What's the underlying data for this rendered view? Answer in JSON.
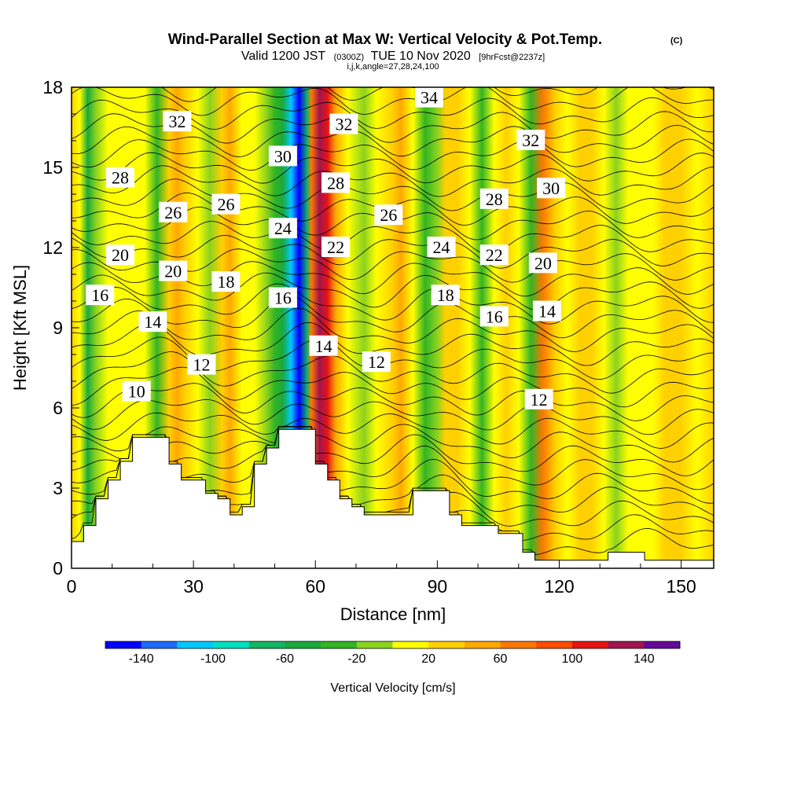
{
  "title": {
    "main": "Wind-Parallel Section at Max W: Vertical Velocity & Pot.Temp.",
    "mark": "(C)",
    "valid_a": "Valid 1200 JST",
    "valid_b": "(0300Z)",
    "valid_c": "TUE 10 Nov 2020",
    "valid_d": "[9hrFcst@2237z]",
    "indices": "i,j,k,angle=27,28,24,100"
  },
  "chart_data": {
    "type": "cross-section",
    "xlabel": "Distance [nm]",
    "ylabel": "Height [Kft MSL]",
    "xlim": [
      0,
      158
    ],
    "ylim": [
      0,
      18
    ],
    "x_ticks": [
      0,
      30,
      60,
      90,
      120,
      150
    ],
    "y_ticks": [
      0,
      3,
      6,
      9,
      12,
      15,
      18
    ],
    "colorbar": {
      "title": "Vertical Velocity [cm/s]",
      "levels": [
        -160,
        -140,
        -120,
        -100,
        -80,
        -60,
        -40,
        -20,
        0,
        20,
        40,
        60,
        80,
        100,
        120,
        140,
        160
      ],
      "colors": [
        "#0000ff",
        "#1e6cff",
        "#00c8ff",
        "#00e0c0",
        "#14b464",
        "#1aaa3c",
        "#32b424",
        "#8cd21e",
        "#ffff00",
        "#ffd000",
        "#ffa800",
        "#ff7800",
        "#ff4c00",
        "#e61414",
        "#a01450",
        "#640a96"
      ],
      "tick_labels": [
        "-140",
        "-100",
        "-60",
        "-20",
        "20",
        "60",
        "100",
        "140"
      ],
      "tick_values": [
        -140,
        -100,
        -60,
        -20,
        20,
        60,
        100,
        140
      ]
    },
    "terrain": [
      [
        0,
        1.0
      ],
      [
        3,
        1.0
      ],
      [
        3,
        1.6
      ],
      [
        6,
        1.6
      ],
      [
        6,
        2.6
      ],
      [
        9,
        2.6
      ],
      [
        9,
        3.3
      ],
      [
        12,
        3.3
      ],
      [
        12,
        4.0
      ],
      [
        15,
        4.0
      ],
      [
        15,
        4.9
      ],
      [
        24,
        4.9
      ],
      [
        24,
        3.9
      ],
      [
        27,
        3.9
      ],
      [
        27,
        3.3
      ],
      [
        33,
        3.3
      ],
      [
        33,
        2.8
      ],
      [
        36,
        2.8
      ],
      [
        36,
        2.6
      ],
      [
        39,
        2.6
      ],
      [
        39,
        2.0
      ],
      [
        42,
        2.0
      ],
      [
        42,
        2.3
      ],
      [
        45,
        2.3
      ],
      [
        45,
        3.9
      ],
      [
        48,
        3.9
      ],
      [
        48,
        4.5
      ],
      [
        51,
        4.5
      ],
      [
        51,
        5.2
      ],
      [
        60,
        5.2
      ],
      [
        60,
        3.9
      ],
      [
        63,
        3.9
      ],
      [
        63,
        3.3
      ],
      [
        66,
        3.3
      ],
      [
        66,
        2.6
      ],
      [
        69,
        2.6
      ],
      [
        69,
        2.3
      ],
      [
        72,
        2.3
      ],
      [
        72,
        2.0
      ],
      [
        84,
        2.0
      ],
      [
        84,
        2.9
      ],
      [
        93,
        2.9
      ],
      [
        93,
        2.0
      ],
      [
        96,
        2.0
      ],
      [
        96,
        1.6
      ],
      [
        105,
        1.6
      ],
      [
        105,
        1.3
      ],
      [
        111,
        1.3
      ],
      [
        111,
        0.6
      ],
      [
        114,
        0.6
      ],
      [
        114,
        0.3
      ],
      [
        132,
        0.3
      ],
      [
        132,
        0.6
      ],
      [
        141,
        0.6
      ],
      [
        141,
        0.3
      ],
      [
        158,
        0.3
      ]
    ],
    "w_columns": [
      {
        "x": 0,
        "w": 30
      },
      {
        "x": 2,
        "w": 10
      },
      {
        "x": 4,
        "w": -50
      },
      {
        "x": 6,
        "w": -20
      },
      {
        "x": 9,
        "w": 10
      },
      {
        "x": 12,
        "w": 0
      },
      {
        "x": 15,
        "w": 10
      },
      {
        "x": 18,
        "w": 0
      },
      {
        "x": 21,
        "w": -25
      },
      {
        "x": 24,
        "w": 20
      },
      {
        "x": 26,
        "w": 55
      },
      {
        "x": 28,
        "w": 25
      },
      {
        "x": 31,
        "w": 10
      },
      {
        "x": 34,
        "w": -20
      },
      {
        "x": 37,
        "w": 20
      },
      {
        "x": 39,
        "w": 40
      },
      {
        "x": 42,
        "w": 10
      },
      {
        "x": 45,
        "w": 0
      },
      {
        "x": 48,
        "w": -15
      },
      {
        "x": 50,
        "w": -30
      },
      {
        "x": 52,
        "w": -60
      },
      {
        "x": 54,
        "w": -110
      },
      {
        "x": 56,
        "w": -150
      },
      {
        "x": 58,
        "w": -70
      },
      {
        "x": 59,
        "w": 60
      },
      {
        "x": 61,
        "w": 130
      },
      {
        "x": 63,
        "w": 100
      },
      {
        "x": 65,
        "w": 40
      },
      {
        "x": 68,
        "w": 10
      },
      {
        "x": 72,
        "w": -10
      },
      {
        "x": 75,
        "w": 10
      },
      {
        "x": 79,
        "w": 20
      },
      {
        "x": 81,
        "w": 40
      },
      {
        "x": 84,
        "w": 10
      },
      {
        "x": 87,
        "w": -30
      },
      {
        "x": 90,
        "w": -10
      },
      {
        "x": 92,
        "w": 30
      },
      {
        "x": 95,
        "w": 20
      },
      {
        "x": 98,
        "w": 0
      },
      {
        "x": 101,
        "w": -30
      },
      {
        "x": 104,
        "w": 10
      },
      {
        "x": 107,
        "w": 20
      },
      {
        "x": 110,
        "w": 0
      },
      {
        "x": 113,
        "w": -30
      },
      {
        "x": 116,
        "w": 60
      },
      {
        "x": 119,
        "w": 30
      },
      {
        "x": 122,
        "w": 5
      },
      {
        "x": 125,
        "w": 20
      },
      {
        "x": 128,
        "w": 30
      },
      {
        "x": 131,
        "w": 0
      },
      {
        "x": 134,
        "w": -10
      },
      {
        "x": 137,
        "w": 10
      },
      {
        "x": 140,
        "w": 0
      },
      {
        "x": 143,
        "w": 10
      },
      {
        "x": 146,
        "w": 20
      },
      {
        "x": 150,
        "w": 30
      },
      {
        "x": 154,
        "w": 0
      },
      {
        "x": 158,
        "w": 20
      }
    ],
    "contour_labels": [
      {
        "text": "32",
        "x": 26,
        "y": 16.7
      },
      {
        "text": "28",
        "x": 12,
        "y": 14.6
      },
      {
        "text": "26",
        "x": 25,
        "y": 13.3
      },
      {
        "text": "26",
        "x": 38,
        "y": 13.6
      },
      {
        "text": "20",
        "x": 12,
        "y": 11.7
      },
      {
        "text": "20",
        "x": 25,
        "y": 11.1
      },
      {
        "text": "18",
        "x": 38,
        "y": 10.7
      },
      {
        "text": "16",
        "x": 7,
        "y": 10.2
      },
      {
        "text": "14",
        "x": 20,
        "y": 9.2
      },
      {
        "text": "12",
        "x": 32,
        "y": 7.6
      },
      {
        "text": "10",
        "x": 16,
        "y": 6.6
      },
      {
        "text": "30",
        "x": 52,
        "y": 15.4
      },
      {
        "text": "24",
        "x": 52,
        "y": 12.7
      },
      {
        "text": "16",
        "x": 52,
        "y": 10.1
      },
      {
        "text": "32",
        "x": 67,
        "y": 16.6
      },
      {
        "text": "28",
        "x": 65,
        "y": 14.4
      },
      {
        "text": "22",
        "x": 65,
        "y": 12.0
      },
      {
        "text": "14",
        "x": 62,
        "y": 8.3
      },
      {
        "text": "34",
        "x": 88,
        "y": 17.6
      },
      {
        "text": "26",
        "x": 78,
        "y": 13.2
      },
      {
        "text": "24",
        "x": 91,
        "y": 12.0
      },
      {
        "text": "18",
        "x": 92,
        "y": 10.2
      },
      {
        "text": "12",
        "x": 75,
        "y": 7.7
      },
      {
        "text": "32",
        "x": 113,
        "y": 16.0
      },
      {
        "text": "30",
        "x": 118,
        "y": 14.2
      },
      {
        "text": "28",
        "x": 104,
        "y": 13.8
      },
      {
        "text": "22",
        "x": 104,
        "y": 11.7
      },
      {
        "text": "20",
        "x": 116,
        "y": 11.4
      },
      {
        "text": "16",
        "x": 104,
        "y": 9.4
      },
      {
        "text": "14",
        "x": 117,
        "y": 9.6
      },
      {
        "text": "12",
        "x": 115,
        "y": 6.3
      }
    ]
  }
}
